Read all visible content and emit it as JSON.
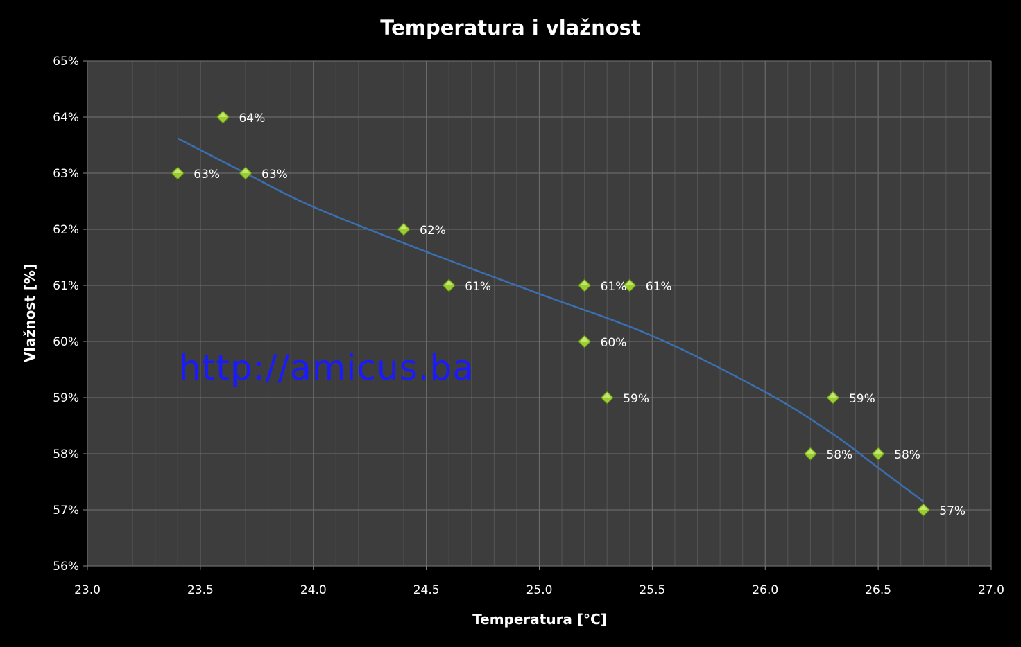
{
  "chart_data": {
    "type": "scatter",
    "title": "Temperatura  i vlažnost",
    "xlabel": "Temperatura [°C]",
    "ylabel": "Vlažnost [%]",
    "xlim": [
      23.0,
      27.0
    ],
    "ylim": [
      56,
      65
    ],
    "x_ticks": [
      "23.0",
      "23.5",
      "24.0",
      "24.5",
      "25.0",
      "25.5",
      "26.0",
      "26.5",
      "27.0"
    ],
    "y_ticks": [
      "56%",
      "57%",
      "58%",
      "59%",
      "60%",
      "61%",
      "62%",
      "63%",
      "64%",
      "65%"
    ],
    "grid": true,
    "legend": "none",
    "colors": {
      "background": "#000000",
      "plot_area": "#3d3d3d",
      "grid": "#6a6a6a",
      "marker": "#9acd32",
      "trendline": "#3a6fb0"
    },
    "series": [
      {
        "points": [
          {
            "x": 23.4,
            "y": 63,
            "label": "63%"
          },
          {
            "x": 23.6,
            "y": 64,
            "label": "64%"
          },
          {
            "x": 23.7,
            "y": 63,
            "label": "63%"
          },
          {
            "x": 24.4,
            "y": 62,
            "label": "62%"
          },
          {
            "x": 24.6,
            "y": 61,
            "label": "61%"
          },
          {
            "x": 25.2,
            "y": 61,
            "label": "61%"
          },
          {
            "x": 25.4,
            "y": 61,
            "label": "61%"
          },
          {
            "x": 25.2,
            "y": 60,
            "label": "60%"
          },
          {
            "x": 25.3,
            "y": 59,
            "label": "59%"
          },
          {
            "x": 26.3,
            "y": 59,
            "label": "59%"
          },
          {
            "x": 26.2,
            "y": 58,
            "label": "58%"
          },
          {
            "x": 26.5,
            "y": 58,
            "label": "58%"
          },
          {
            "x": 26.7,
            "y": 57,
            "label": "57%"
          }
        ]
      }
    ],
    "trendline": {
      "type": "curve",
      "points": [
        {
          "x": 23.4,
          "y": 63.62
        },
        {
          "x": 23.7,
          "y": 63.0
        },
        {
          "x": 24.0,
          "y": 62.4
        },
        {
          "x": 24.5,
          "y": 61.6
        },
        {
          "x": 25.0,
          "y": 60.85
        },
        {
          "x": 25.5,
          "y": 60.1
        },
        {
          "x": 26.0,
          "y": 59.1
        },
        {
          "x": 26.3,
          "y": 58.35
        },
        {
          "x": 26.5,
          "y": 57.75
        },
        {
          "x": 26.7,
          "y": 57.15
        }
      ]
    },
    "watermark": "http://amicus.ba"
  }
}
